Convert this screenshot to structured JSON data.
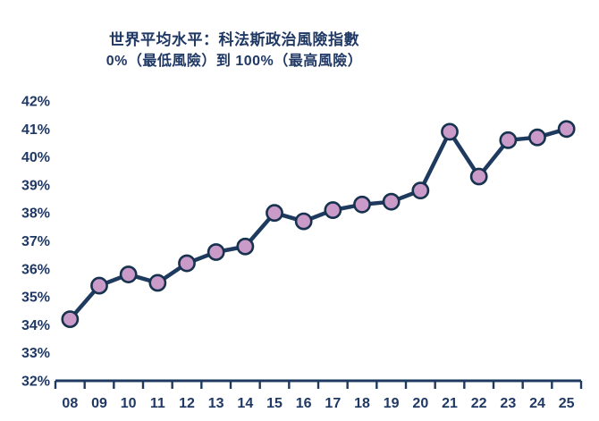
{
  "header": {
    "title": "世界平均水平：科法斯政治風險指數",
    "subtitle": "0%（最低風險）到 100%（最高風險）"
  },
  "colors": {
    "text_navy": "#1f3864",
    "line_navy": "#1e3a5f",
    "axis_navy": "#1e3a5f",
    "marker_fill": "#ca9bc9",
    "marker_stroke": "#17324f",
    "background": "#ffffff"
  },
  "chart_data": {
    "type": "line",
    "title": "世界平均水平：科法斯政治風險指數",
    "subtitle": "0%（最低風險）到 100%（最高風險）",
    "categories": [
      "08",
      "09",
      "10",
      "11",
      "12",
      "13",
      "14",
      "15",
      "16",
      "17",
      "18",
      "19",
      "20",
      "21",
      "22",
      "23",
      "24",
      "25"
    ],
    "series": [
      {
        "name": "世界平均水平：科法斯政治風險指數",
        "values": [
          34.2,
          35.4,
          35.8,
          35.5,
          36.2,
          36.6,
          36.8,
          38.0,
          37.7,
          38.1,
          38.3,
          38.4,
          38.8,
          40.9,
          39.3,
          40.6,
          40.7,
          41.0
        ]
      }
    ],
    "xlabel": "",
    "ylabel": "",
    "ylim": [
      32,
      42
    ],
    "y_tick_values": [
      32,
      33,
      34,
      35,
      36,
      37,
      38,
      39,
      40,
      41,
      42
    ],
    "y_tick_labels": [
      "32%",
      "33%",
      "34%",
      "35%",
      "36%",
      "37%",
      "38%",
      "39%",
      "40%",
      "41%",
      "42%"
    ],
    "grid": false,
    "legend": "none",
    "marker": "circle"
  }
}
